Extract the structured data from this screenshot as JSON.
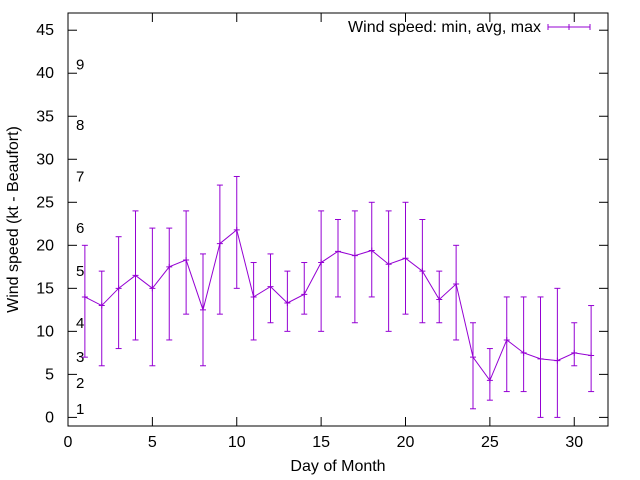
{
  "chart_data": {
    "type": "line",
    "title": "",
    "xlabel": "Day of Month",
    "ylabel": "Wind speed (kt - Beaufort)",
    "xlim": [
      0,
      32
    ],
    "ylim": [
      -1,
      47
    ],
    "xticks": [
      0,
      5,
      10,
      15,
      20,
      25,
      30
    ],
    "yticks": [
      0,
      5,
      10,
      15,
      20,
      25,
      30,
      35,
      40,
      45
    ],
    "grid": false,
    "legend_position": "top-right",
    "color": "#9400d3",
    "beaufort_labels": [
      {
        "label": "1",
        "value": 1
      },
      {
        "label": "2",
        "value": 4
      },
      {
        "label": "3",
        "value": 7
      },
      {
        "label": "4",
        "value": 11
      },
      {
        "label": "5",
        "value": 17
      },
      {
        "label": "6",
        "value": 22
      },
      {
        "label": "7",
        "value": 28
      },
      {
        "label": "8",
        "value": 34
      },
      {
        "label": "9",
        "value": 41
      }
    ],
    "series": [
      {
        "name": "Wind speed: min, avg, max",
        "x": [
          1,
          2,
          3,
          4,
          5,
          6,
          7,
          8,
          9,
          10,
          11,
          12,
          13,
          14,
          15,
          16,
          17,
          18,
          19,
          20,
          21,
          22,
          23,
          24,
          25,
          26,
          27,
          28,
          29,
          30,
          31
        ],
        "avg": [
          14,
          13,
          15,
          16.5,
          15,
          17.5,
          18.3,
          12.5,
          20.2,
          21.8,
          14,
          15.2,
          13.3,
          14.3,
          18,
          19.3,
          18.8,
          19.4,
          17.8,
          18.5,
          17,
          13.7,
          15.5,
          7,
          4.3,
          9,
          7.5,
          6.8,
          6.6,
          7.5,
          7.2
        ],
        "min": [
          7,
          6,
          8,
          9,
          6,
          9,
          12,
          6,
          12,
          15,
          9,
          11,
          10,
          12,
          10,
          14,
          11,
          14,
          10,
          12,
          11,
          11,
          9,
          1,
          2,
          3,
          3,
          0,
          0,
          6,
          3
        ],
        "max": [
          20,
          17,
          21,
          24,
          22,
          22,
          24,
          19,
          27,
          28,
          18,
          19,
          17,
          18,
          24,
          23,
          24,
          25,
          24,
          25,
          23,
          17,
          20,
          11,
          8,
          14,
          14,
          14,
          15,
          11,
          13
        ]
      }
    ]
  }
}
